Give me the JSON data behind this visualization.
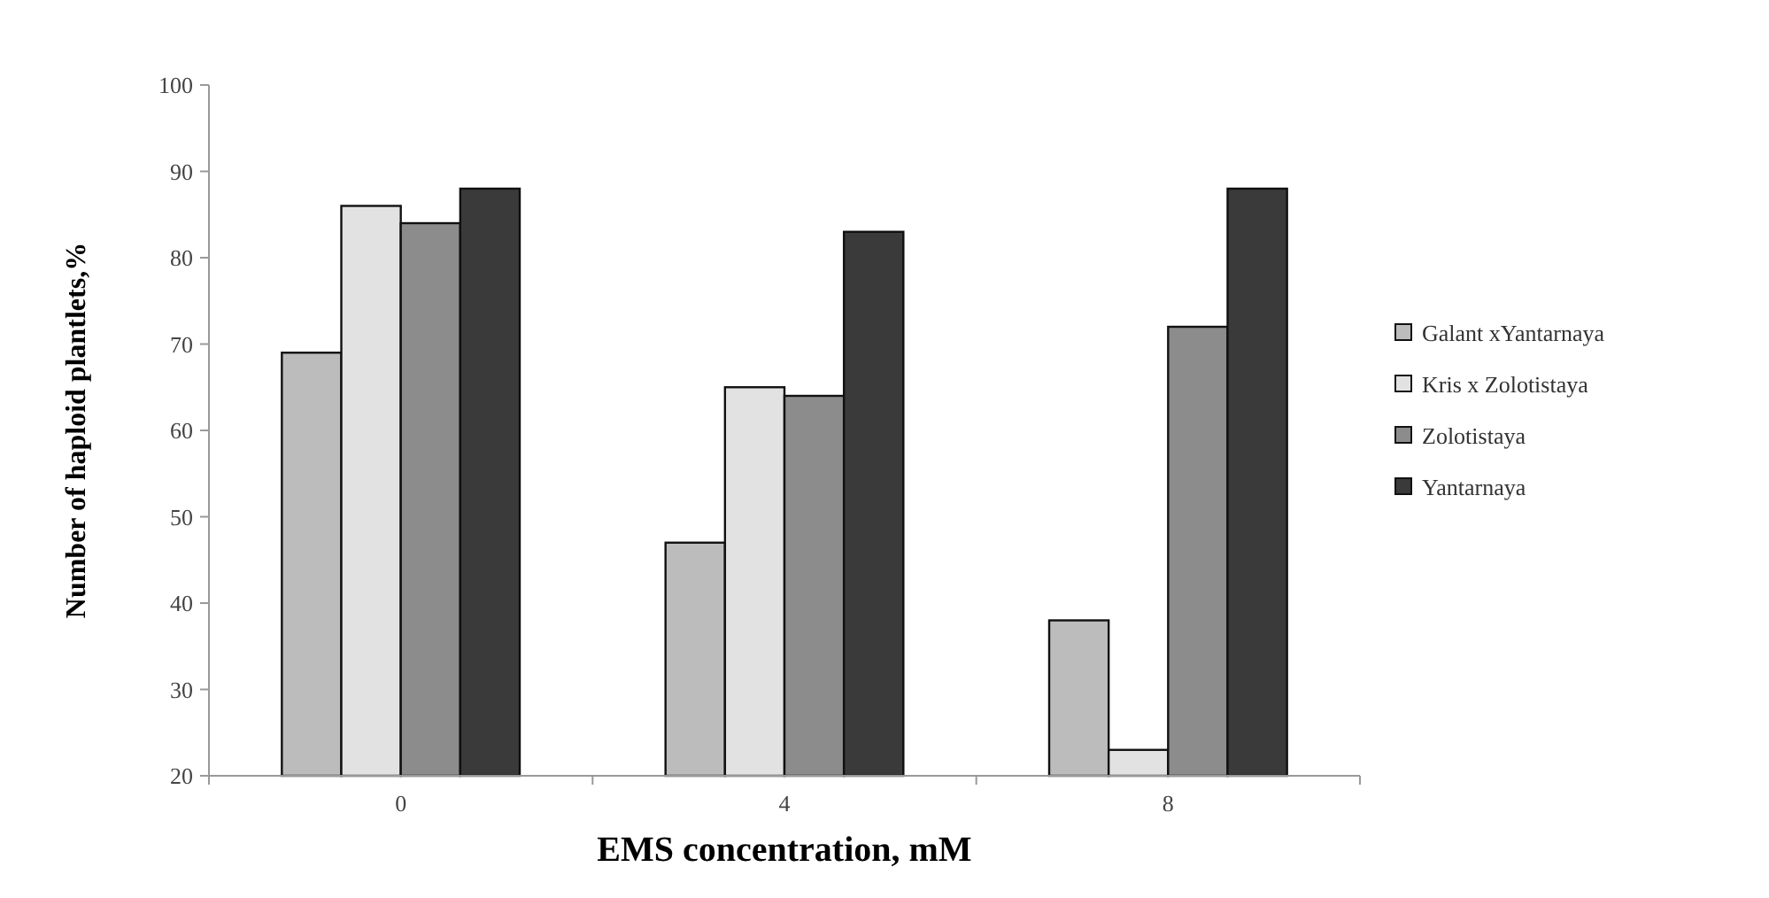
{
  "chart_data": {
    "type": "bar",
    "xlabel": "EMS concentration, mM",
    "ylabel": "Number of haploid plantlets,%",
    "categories": [
      "0",
      "4",
      "8"
    ],
    "series": [
      {
        "name": "Galant xYantarnaya",
        "color": "#bcbcbc",
        "values": [
          69,
          47,
          38
        ]
      },
      {
        "name": "Kris x Zolotistaya",
        "color": "#e2e2e2",
        "values": [
          86,
          65,
          23
        ]
      },
      {
        "name": "Zolotistaya",
        "color": "#8c8c8c",
        "values": [
          84,
          64,
          72
        ]
      },
      {
        "name": "Yantarnaya",
        "color": "#3a3a3a",
        "values": [
          88,
          83,
          88
        ]
      }
    ],
    "ylim": [
      20,
      100
    ],
    "yticks": [
      20,
      30,
      40,
      50,
      60,
      70,
      80,
      90,
      100
    ],
    "grid": false,
    "legend": "right"
  }
}
